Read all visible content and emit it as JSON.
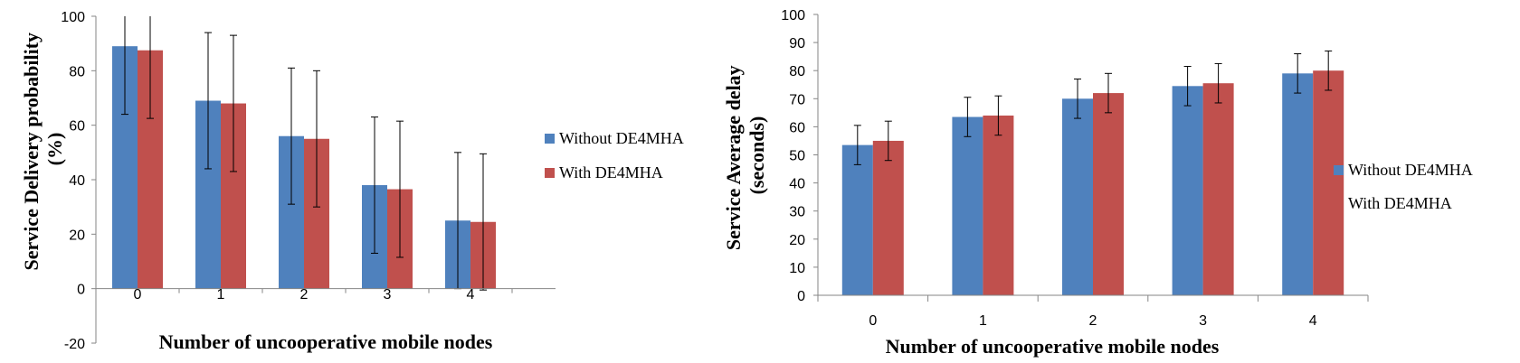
{
  "chart_data": [
    {
      "type": "bar",
      "categories": [
        "0",
        "1",
        "2",
        "3",
        "4"
      ],
      "series": [
        {
          "name": "Without DE4MHA",
          "color": "#4F81BD",
          "values": [
            89,
            69,
            56,
            38,
            25
          ],
          "error": [
            25,
            25,
            25,
            25,
            25
          ]
        },
        {
          "name": "With DE4MHA",
          "color": "#C0504D",
          "values": [
            87.5,
            68,
            55,
            36.5,
            24.5
          ],
          "error": [
            25,
            25,
            25,
            25,
            25
          ]
        }
      ],
      "xlabel": "Number of uncooperative mobile nodes",
      "ylabel": "Service Delivery probability (%)",
      "ylim": [
        -20,
        100
      ],
      "yticks": [
        -20,
        0,
        20,
        40,
        60,
        80,
        100
      ],
      "legend": "right"
    },
    {
      "type": "bar",
      "categories": [
        "0",
        "1",
        "2",
        "3",
        "4"
      ],
      "series": [
        {
          "name": "Without DE4MHA",
          "color": "#4F81BD",
          "values": [
            53.5,
            63.5,
            70,
            74.5,
            79
          ],
          "error": [
            7,
            7,
            7,
            7,
            7
          ]
        },
        {
          "name": "With DE4MHA",
          "color": "#C0504D",
          "values": [
            55,
            64,
            72,
            75.5,
            80
          ],
          "error": [
            7,
            7,
            7,
            7,
            7
          ]
        }
      ],
      "xlabel": "Number of uncooperative mobile nodes",
      "ylabel": "Service Average delay (seconds)",
      "ylim": [
        0,
        100
      ],
      "yticks": [
        0,
        10,
        20,
        30,
        40,
        50,
        60,
        70,
        80,
        90,
        100
      ],
      "legend": "right"
    }
  ]
}
